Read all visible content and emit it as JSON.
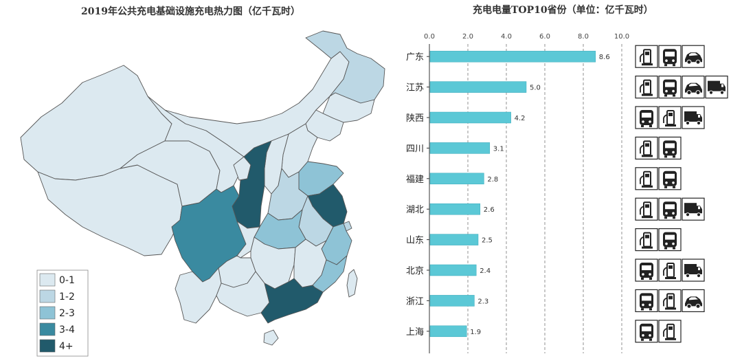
{
  "map": {
    "title": "2019年公共充电基础设施充电热力图（亿千瓦时）",
    "legend": [
      {
        "label": "0-1",
        "color": "#dce9f0"
      },
      {
        "label": "1-2",
        "color": "#bcd7e4"
      },
      {
        "label": "2-3",
        "color": "#8ec3d6"
      },
      {
        "label": "3-4",
        "color": "#3a8aa0"
      },
      {
        "label": "4+",
        "color": "#215a6b"
      }
    ]
  },
  "chart_data": {
    "type": "bar",
    "orientation": "horizontal",
    "title": "充电电量TOP10省份（单位：亿千瓦时）",
    "categories": [
      "广东",
      "江苏",
      "陕西",
      "四川",
      "福建",
      "湖北",
      "山东",
      "北京",
      "浙江",
      "上海"
    ],
    "values": [
      8.6,
      5.0,
      4.2,
      3.1,
      2.8,
      2.6,
      2.5,
      2.4,
      2.3,
      1.9
    ],
    "value_labels": [
      "8.6",
      "5.0",
      "4.2",
      "3.1",
      "2.8",
      "2.6",
      "2.5",
      "2.4",
      "2.3",
      "1.9"
    ],
    "xlim": [
      0,
      10
    ],
    "x_ticks": [
      "0.0",
      "2.0",
      "4.0",
      "6.0",
      "8.0",
      "10.0"
    ],
    "axis_position": "top",
    "grid": "vertical-dashed",
    "bar_color": "#5bc8d6"
  },
  "vehicle_icons": [
    [
      "charger-icon",
      "bus-icon",
      "car-icon"
    ],
    [
      "charger-icon",
      "bus-icon",
      "car-icon",
      "truck-icon"
    ],
    [
      "bus-icon",
      "charger-icon",
      "truck-icon"
    ],
    [
      "charger-icon",
      "bus-icon"
    ],
    [
      "charger-icon",
      "bus-icon"
    ],
    [
      "charger-icon",
      "bus-icon",
      "truck-icon"
    ],
    [
      "charger-icon",
      "bus-icon"
    ],
    [
      "bus-icon",
      "charger-icon",
      "truck-icon"
    ],
    [
      "bus-icon",
      "charger-icon",
      "car-icon"
    ],
    [
      "bus-icon",
      "charger-icon"
    ]
  ]
}
